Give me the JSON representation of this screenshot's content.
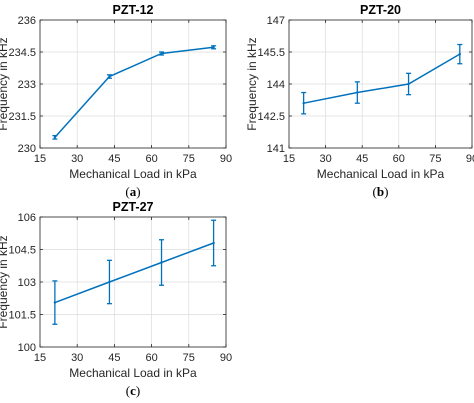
{
  "chart_data": [
    {
      "type": "line",
      "title": "PZT-12",
      "caption": "a",
      "xlabel": "Mechanical Load in kPa",
      "ylabel": "Frequency in kHz",
      "xlim": [
        15,
        90
      ],
      "ylim": [
        230,
        236
      ],
      "xticks": [
        "15",
        "30",
        "45",
        "60",
        "75",
        "90"
      ],
      "yticks": [
        "230",
        "231.5",
        "233",
        "234.5",
        "236"
      ],
      "grid": true,
      "x": [
        21,
        43,
        64,
        85
      ],
      "y": [
        230.5,
        233.35,
        234.43,
        234.72
      ],
      "err": [
        0.08,
        0.08,
        0.07,
        0.07
      ],
      "color": "#0072BD"
    },
    {
      "type": "line",
      "title": "PZT-20",
      "caption": "b",
      "xlabel": "Mechanical Load in kPa",
      "ylabel": "Frequency in kHz",
      "xlim": [
        15,
        90
      ],
      "ylim": [
        141,
        147
      ],
      "xticks": [
        "15",
        "30",
        "45",
        "60",
        "75",
        "90"
      ],
      "yticks": [
        "141",
        "142.5",
        "144",
        "145.5",
        "147"
      ],
      "grid": true,
      "x": [
        21,
        43,
        64,
        85
      ],
      "y": [
        143.1,
        143.6,
        144.0,
        145.4
      ],
      "err": [
        0.5,
        0.5,
        0.5,
        0.45
      ],
      "color": "#0072BD"
    },
    {
      "type": "line",
      "title": "PZT-27",
      "caption": "c",
      "xlabel": "Mechanical Load in kPa",
      "ylabel": "Frequency in kHz",
      "xlim": [
        15,
        90
      ],
      "ylim": [
        100,
        106
      ],
      "xticks": [
        "15",
        "30",
        "45",
        "60",
        "75",
        "90"
      ],
      "yticks": [
        "100",
        "101.5",
        "103",
        "104.5",
        "106"
      ],
      "grid": true,
      "x": [
        21,
        43,
        64,
        85
      ],
      "y": [
        102.05,
        103.0,
        103.9,
        104.8
      ],
      "err": [
        1.0,
        1.0,
        1.05,
        1.05
      ],
      "color": "#0072BD"
    }
  ]
}
